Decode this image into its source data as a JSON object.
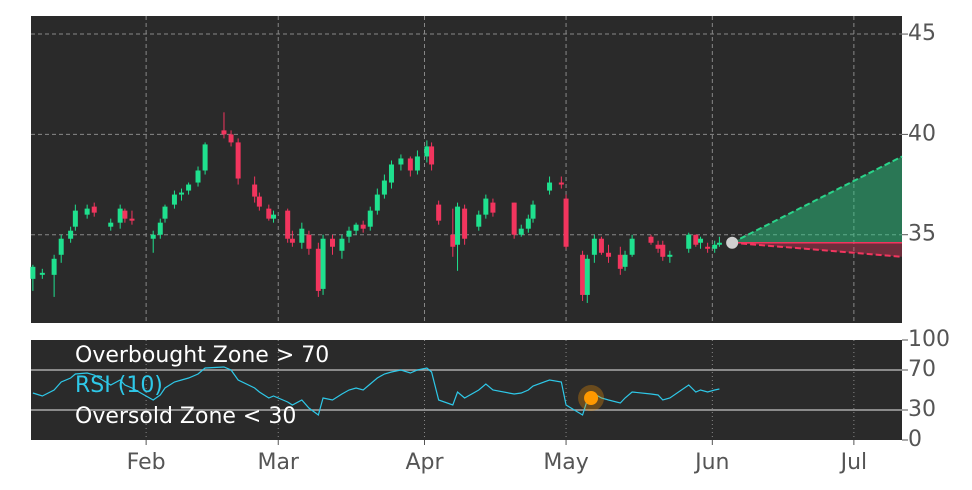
{
  "chart_data": [
    {
      "type": "candlestick",
      "up_color": "#1fe08e",
      "down_color": "#f2355e",
      "grid": true,
      "xlim": [
        7.6,
        192.2
      ],
      "ylim": [
        30.6,
        45.9
      ],
      "yticks": [
        35,
        40,
        45
      ],
      "x": [
        8,
        10,
        12.5,
        14,
        16,
        17,
        19.5,
        21,
        24.5,
        26.5,
        27.5,
        29,
        33.5,
        35,
        36,
        38,
        39.5,
        41,
        43,
        44.5,
        48.5,
        50,
        51.5,
        55,
        56,
        58,
        59,
        62,
        63,
        65,
        66.5,
        68.5,
        69.5,
        71.5,
        73.5,
        75,
        76.5,
        78,
        79.5,
        81,
        82.5,
        84,
        86,
        88,
        89.5,
        91.5,
        92.5,
        94,
        97,
        98,
        99.5,
        102.5,
        104,
        105.5,
        110,
        111.5,
        113,
        114,
        117.5,
        120,
        121,
        124.5,
        125.5,
        127,
        128.5,
        130,
        132.5,
        133.5,
        135,
        139,
        140.5,
        141.5,
        143,
        147,
        148.5,
        149.5,
        151,
        152.5,
        153.5
      ],
      "open": [
        32.8,
        33.0,
        33.0,
        34.0,
        34.8,
        35.4,
        36.0,
        36.4,
        35.4,
        35.6,
        36.2,
        35.8,
        34.8,
        35.0,
        35.8,
        36.5,
        37.0,
        37.2,
        37.6,
        38.2,
        40.2,
        40.0,
        39.6,
        37.5,
        36.9,
        36.3,
        35.8,
        36.2,
        34.8,
        34.6,
        35.0,
        34.3,
        32.3,
        34.8,
        34.2,
        34.9,
        35.2,
        35.5,
        35.4,
        36.2,
        37.0,
        37.6,
        38.5,
        38.8,
        38.2,
        38.9,
        39.4,
        36.5,
        35.0,
        34.5,
        36.3,
        35.4,
        36.0,
        36.6,
        36.6,
        35.0,
        35.3,
        35.8,
        37.2,
        37.6,
        36.8,
        34.0,
        32.0,
        34.0,
        34.8,
        34.1,
        34.0,
        33.4,
        34.0,
        34.9,
        34.5,
        34.5,
        33.9,
        34.3,
        35.0,
        34.6,
        34.4,
        34.3,
        34.5
      ],
      "high": [
        33.5,
        33.3,
        34.0,
        35.0,
        35.4,
        36.5,
        36.5,
        36.6,
        35.8,
        36.5,
        36.3,
        36.2,
        35.2,
        35.8,
        36.5,
        37.2,
        37.3,
        37.6,
        38.4,
        39.6,
        41.1,
        40.2,
        39.8,
        37.9,
        37.1,
        36.5,
        36.2,
        36.3,
        35.2,
        35.6,
        35.2,
        34.6,
        35.0,
        35.0,
        35.0,
        35.4,
        35.6,
        35.7,
        36.4,
        37.3,
        38.0,
        38.7,
        39.0,
        38.9,
        39.2,
        39.7,
        39.6,
        36.7,
        36.3,
        36.6,
        36.5,
        36.2,
        37.0,
        36.8,
        36.6,
        35.5,
        36.0,
        36.7,
        37.9,
        37.9,
        37.0,
        34.2,
        34.0,
        35.0,
        34.9,
        34.5,
        34.4,
        34.2,
        35.0,
        35.0,
        34.7,
        34.7,
        34.2,
        35.1,
        35.0,
        34.9,
        34.6,
        34.7,
        34.9
      ],
      "low": [
        32.2,
        32.8,
        31.9,
        33.6,
        34.6,
        35.2,
        35.8,
        35.9,
        35.2,
        35.3,
        35.6,
        35.5,
        34.1,
        34.8,
        35.6,
        36.3,
        36.7,
        37.0,
        37.4,
        38.0,
        39.8,
        39.4,
        37.5,
        36.6,
        36.2,
        35.7,
        35.6,
        34.6,
        34.4,
        34.3,
        34.0,
        31.9,
        32.0,
        34.0,
        33.8,
        34.6,
        35.0,
        35.1,
        35.2,
        36.0,
        36.8,
        37.3,
        38.2,
        37.9,
        38.0,
        38.6,
        38.2,
        35.5,
        33.9,
        33.2,
        34.5,
        35.2,
        35.8,
        35.9,
        34.8,
        34.9,
        35.1,
        35.6,
        37.0,
        37.3,
        34.3,
        31.7,
        31.6,
        33.6,
        34.0,
        33.6,
        33.0,
        33.2,
        33.9,
        34.5,
        34.1,
        33.7,
        33.6,
        34.1,
        34.4,
        34.3,
        34.1,
        34.1,
        34.4
      ],
      "close": [
        33.4,
        33.1,
        33.8,
        34.8,
        35.2,
        36.2,
        36.3,
        36.1,
        35.6,
        36.3,
        35.8,
        35.7,
        35.0,
        35.6,
        36.4,
        37.0,
        37.1,
        37.5,
        38.2,
        39.5,
        40.0,
        39.6,
        37.8,
        36.9,
        36.4,
        35.8,
        36.0,
        34.8,
        34.6,
        35.3,
        34.3,
        32.2,
        34.8,
        34.4,
        34.8,
        35.2,
        35.5,
        35.3,
        36.2,
        37.0,
        37.7,
        38.5,
        38.8,
        38.2,
        38.9,
        39.4,
        38.5,
        35.7,
        34.4,
        36.4,
        34.8,
        36.0,
        36.8,
        36.1,
        35.0,
        35.3,
        35.8,
        36.5,
        37.6,
        37.5,
        34.4,
        32.0,
        33.8,
        34.8,
        34.1,
        33.9,
        33.3,
        34.0,
        34.8,
        34.6,
        34.3,
        33.9,
        34.0,
        35.0,
        34.5,
        34.8,
        34.3,
        34.5,
        34.6
      ],
      "forecast": {
        "x": [
          156.2,
          192.2
        ],
        "mid": [
          34.6,
          34.6
        ],
        "upper": [
          34.6,
          38.9
        ],
        "lower": [
          34.6,
          33.9
        ],
        "upper_color": "#2ad48a",
        "lower_color": "#f2355e",
        "point_color": "#d0d0d0"
      }
    },
    {
      "type": "line",
      "xlim": [
        7.6,
        192.2
      ],
      "ylim": [
        0,
        100
      ],
      "yticks": [
        0,
        30,
        70,
        100
      ],
      "hlines": [
        70,
        30
      ],
      "xticks": [
        {
          "value": 32,
          "label": "Feb"
        },
        {
          "value": 60,
          "label": "Mar"
        },
        {
          "value": 91,
          "label": "Apr"
        },
        {
          "value": 121,
          "label": "May"
        },
        {
          "value": 152,
          "label": "Jun"
        },
        {
          "value": 182,
          "label": "Jul"
        }
      ],
      "annotations": [
        "Overbought Zone > 70",
        "Oversold Zone < 30"
      ],
      "x": [
        8,
        10,
        12.5,
        14,
        16,
        17,
        19.5,
        21,
        24.5,
        26.5,
        27.5,
        29,
        33.5,
        35,
        36,
        38,
        39.5,
        41,
        43,
        44.5,
        48.5,
        50,
        51.5,
        55,
        56,
        58,
        59,
        62,
        63,
        65,
        66.5,
        68.5,
        69.5,
        71.5,
        73.5,
        75,
        76.5,
        78,
        79.5,
        81,
        82.5,
        84,
        86,
        88,
        89.5,
        91.5,
        92.5,
        94,
        97,
        98,
        99.5,
        102.5,
        104,
        105.5,
        110,
        111.5,
        113,
        114,
        117.5,
        120,
        121,
        124.5,
        125.5,
        127,
        128.5,
        130,
        132.5,
        133.5,
        135,
        139,
        140.5,
        141.5,
        143,
        147,
        148.5,
        149.5,
        151,
        152.5,
        153.5
      ],
      "series": [
        {
          "name": "RSI (10)",
          "color": "#2ec8e8",
          "values": [
            47,
            44,
            50,
            58,
            62,
            66,
            67,
            65,
            55,
            60,
            55,
            52,
            40,
            45,
            52,
            58,
            60,
            62,
            66,
            72,
            73,
            70,
            60,
            52,
            48,
            42,
            44,
            38,
            35,
            40,
            32,
            25,
            42,
            40,
            46,
            50,
            52,
            50,
            56,
            62,
            66,
            68,
            70,
            67,
            70,
            72,
            68,
            40,
            35,
            48,
            42,
            50,
            56,
            50,
            46,
            47,
            50,
            54,
            60,
            58,
            35,
            25,
            40,
            46,
            42,
            40,
            37,
            42,
            48,
            46,
            45,
            40,
            42,
            55,
            48,
            50,
            48,
            50,
            51
          ]
        }
      ],
      "marker": {
        "x": 126.3,
        "value": 42,
        "color": "#ff9900"
      }
    }
  ]
}
